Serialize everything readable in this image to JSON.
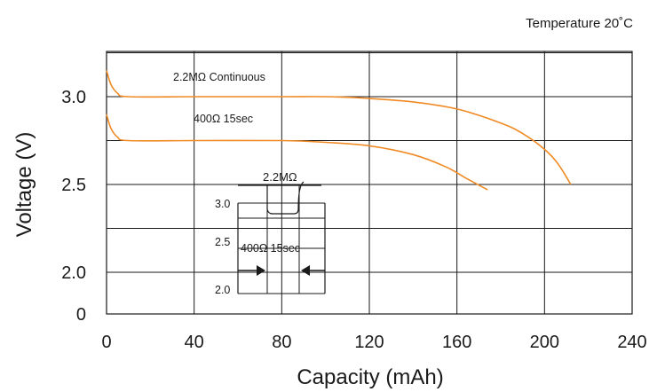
{
  "chart_data": {
    "type": "line",
    "title": "",
    "annotation_top_right": "Temperature 20˚C",
    "xlabel": "Capacity (mAh)",
    "ylabel": "Voltage (V)",
    "x_ticks": [
      "0",
      "40",
      "80",
      "120",
      "160",
      "200",
      "240"
    ],
    "y_ticks": [
      "0",
      "2.0",
      "2.5",
      "3.0"
    ],
    "xlim": [
      0,
      240
    ],
    "grid": true,
    "series": [
      {
        "name": "2.2MΩ Continuous",
        "color": "#f08a24",
        "points": [
          [
            0,
            3.15
          ],
          [
            2,
            3.07
          ],
          [
            5,
            3.02
          ],
          [
            10,
            3.0
          ],
          [
            40,
            3.0
          ],
          [
            80,
            3.0
          ],
          [
            100,
            3.0
          ],
          [
            120,
            2.99
          ],
          [
            140,
            2.97
          ],
          [
            160,
            2.93
          ],
          [
            180,
            2.85
          ],
          [
            190,
            2.79
          ],
          [
            200,
            2.7
          ],
          [
            206,
            2.62
          ],
          [
            212,
            2.5
          ]
        ]
      },
      {
        "name": "400Ω 15sec",
        "color": "#f08a24",
        "points": [
          [
            0,
            2.9
          ],
          [
            2,
            2.82
          ],
          [
            5,
            2.77
          ],
          [
            10,
            2.75
          ],
          [
            40,
            2.75
          ],
          [
            80,
            2.75
          ],
          [
            100,
            2.74
          ],
          [
            120,
            2.72
          ],
          [
            140,
            2.67
          ],
          [
            155,
            2.6
          ],
          [
            165,
            2.53
          ],
          [
            174,
            2.47
          ]
        ]
      }
    ],
    "inset": {
      "labels": [
        "2.2MΩ",
        "3.0",
        "2.5",
        "400Ω 15sec",
        "2.0"
      ]
    }
  }
}
